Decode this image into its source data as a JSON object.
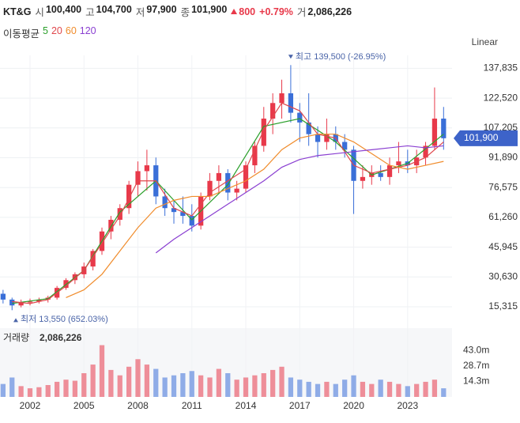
{
  "header": {
    "name": "KT&G",
    "items": [
      {
        "label": "시",
        "value": "100,400"
      },
      {
        "label": "고",
        "value": "104,700"
      },
      {
        "label": "저",
        "value": "97,900"
      },
      {
        "label": "종",
        "value": "101,900"
      }
    ],
    "change": {
      "amount": "800",
      "percent": "+0.79%"
    },
    "volume": {
      "label": "거",
      "value": "2,086,226"
    },
    "ma_legend": "이동평균",
    "scale_mode": "Linear"
  },
  "chart_data": {
    "type": "candlestick",
    "up_color": "#e8394a",
    "down_color": "#3a6fd8",
    "xlim": [
      2000.33,
      2025.47
    ],
    "xticks": [
      2002,
      2005,
      2008,
      2011,
      2014,
      2017,
      2020,
      2023
    ],
    "ylim": [
      8400,
      144500
    ],
    "yticks": [
      {
        "value": 15315,
        "label": "15,315"
      },
      {
        "value": 30630,
        "label": "30,630"
      },
      {
        "value": 45945,
        "label": "45,945"
      },
      {
        "value": 61260,
        "label": "61,260"
      },
      {
        "value": 76575,
        "label": "76,575"
      },
      {
        "value": 91890,
        "label": "91,890"
      },
      {
        "value": 107205,
        "label": "107,205"
      },
      {
        "value": 122520,
        "label": "122,520"
      },
      {
        "value": 137835,
        "label": "137,835"
      }
    ],
    "grid": true,
    "x": [
      2000.5,
      2001,
      2001.5,
      2002,
      2002.5,
      2003,
      2003.5,
      2004,
      2004.5,
      2005,
      2005.5,
      2006,
      2006.5,
      2007,
      2007.5,
      2008,
      2008.5,
      2009,
      2009.5,
      2010,
      2010.5,
      2011,
      2011.5,
      2012,
      2012.5,
      2013,
      2013.5,
      2014,
      2014.5,
      2015,
      2015.5,
      2016,
      2016.5,
      2017,
      2017.5,
      2018,
      2018.5,
      2019,
      2019.5,
      2020,
      2020.5,
      2021,
      2021.5,
      2022,
      2022.5,
      2023,
      2023.5,
      2024,
      2024.5,
      2025
    ],
    "open": [
      22000,
      19000,
      16000,
      17500,
      18000,
      19000,
      20000,
      25000,
      29000,
      32000,
      36000,
      44000,
      54000,
      60000,
      66000,
      78000,
      85000,
      88000,
      72000,
      66000,
      64000,
      62000,
      57000,
      72000,
      80000,
      84000,
      74000,
      76000,
      88000,
      98000,
      112000,
      120000,
      125000,
      115000,
      110000,
      104000,
      100000,
      104000,
      100000,
      96000,
      80000,
      82000,
      84000,
      82000,
      88000,
      90000,
      88000,
      92000,
      98000,
      112000
    ],
    "high": [
      24000,
      20000,
      19000,
      19500,
      20000,
      21000,
      26000,
      30000,
      33000,
      38000,
      45000,
      56000,
      62000,
      68000,
      80000,
      90000,
      96000,
      92000,
      76000,
      70000,
      72000,
      68000,
      74000,
      84000,
      88000,
      86000,
      80000,
      90000,
      100000,
      118000,
      125000,
      132000,
      139500,
      120000,
      125000,
      108000,
      112000,
      108000,
      104000,
      98000,
      88000,
      88000,
      88000,
      92000,
      100000,
      96000,
      96000,
      100000,
      128000,
      118000
    ],
    "low": [
      17000,
      13550,
      15000,
      16000,
      17000,
      17500,
      19000,
      24000,
      27000,
      30000,
      34000,
      42000,
      50000,
      57000,
      63000,
      72000,
      75000,
      68000,
      62000,
      58000,
      58000,
      54000,
      55000,
      70000,
      74000,
      70000,
      70000,
      74000,
      84000,
      95000,
      104000,
      112000,
      110000,
      100000,
      98000,
      92000,
      96000,
      96000,
      92000,
      63000,
      76000,
      78000,
      80000,
      78000,
      84000,
      84000,
      84000,
      88000,
      96000,
      96000
    ],
    "close": [
      19000,
      16000,
      17500,
      18000,
      19000,
      20000,
      25000,
      29000,
      32000,
      36000,
      44000,
      54000,
      60000,
      66000,
      78000,
      85000,
      88000,
      72000,
      66000,
      64000,
      62000,
      57000,
      72000,
      80000,
      84000,
      74000,
      76000,
      88000,
      98000,
      112000,
      120000,
      125000,
      115000,
      110000,
      104000,
      100000,
      104000,
      100000,
      96000,
      80000,
      82000,
      84000,
      82000,
      88000,
      90000,
      88000,
      92000,
      98000,
      112000,
      101900
    ],
    "ma": [
      {
        "name": "5",
        "color": "#2ca02c",
        "x": [
          2001,
          2003,
          2005,
          2007,
          2009,
          2011,
          2013,
          2015,
          2017,
          2019,
          2021,
          2023,
          2025
        ],
        "values": [
          17000,
          19500,
          34000,
          64000,
          80000,
          60000,
          78000,
          108000,
          112000,
          100000,
          83000,
          89000,
          104000
        ]
      },
      {
        "name": "20",
        "color": "#e0474c",
        "x": [
          2001,
          2002,
          2003,
          2004,
          2005,
          2006,
          2007,
          2008,
          2009,
          2010,
          2011,
          2012,
          2013,
          2014,
          2015,
          2016,
          2017,
          2018,
          2019,
          2020,
          2021,
          2022,
          2023,
          2024,
          2025
        ],
        "values": [
          18000,
          17000,
          19000,
          26000,
          34000,
          48000,
          62000,
          80000,
          80000,
          66000,
          62000,
          74000,
          80000,
          86000,
          106000,
          120000,
          116000,
          104000,
          102000,
          88000,
          84000,
          86000,
          88000,
          92000,
          100000
        ]
      },
      {
        "name": "60",
        "color": "#f08c2c",
        "x": [
          2004,
          2005,
          2006,
          2007,
          2008,
          2009,
          2010,
          2011,
          2012,
          2013,
          2014,
          2015,
          2016,
          2017,
          2018,
          2019,
          2020,
          2021,
          2022,
          2023,
          2024,
          2025
        ],
        "values": [
          20000,
          24000,
          32000,
          44000,
          56000,
          66000,
          70000,
          72000,
          72000,
          76000,
          80000,
          86000,
          96000,
          102000,
          104000,
          104000,
          100000,
          94000,
          88000,
          86000,
          88000,
          90000
        ]
      },
      {
        "name": "120",
        "color": "#8a3fd1",
        "x": [
          2009,
          2010,
          2011,
          2012,
          2013,
          2014,
          2015,
          2016,
          2017,
          2018,
          2019,
          2020,
          2021,
          2022,
          2023,
          2024,
          2025
        ],
        "values": [
          43000,
          50000,
          56000,
          62000,
          68000,
          74000,
          80000,
          87000,
          91000,
          93000,
          94000,
          95000,
          96000,
          97000,
          98000,
          97000,
          98000
        ]
      }
    ],
    "high_annotation": "최고 139,500 (-26.95%)",
    "low_annotation": "최저 13,550 (652.03%)",
    "current_price": {
      "value": 101900,
      "label": "101,900"
    },
    "volume_title": "거래량",
    "volume_value": "2,086,226",
    "volume": [
      12000000,
      18000000,
      10000000,
      8000000,
      9000000,
      11000000,
      14000000,
      16000000,
      15000000,
      22000000,
      30000000,
      48000000,
      25000000,
      20000000,
      28000000,
      35000000,
      30000000,
      26000000,
      18000000,
      20000000,
      22000000,
      24000000,
      20000000,
      18000000,
      26000000,
      22000000,
      16000000,
      18000000,
      20000000,
      22000000,
      25000000,
      28000000,
      18000000,
      16000000,
      14000000,
      12000000,
      14000000,
      12000000,
      16000000,
      20000000,
      14000000,
      12000000,
      16000000,
      14000000,
      12000000,
      10000000,
      12000000,
      14000000,
      16000000,
      8000000
    ],
    "vlim": [
      0,
      63800000
    ],
    "vticks": [
      {
        "value": 14300000,
        "label": "14.3m"
      },
      {
        "value": 28700000,
        "label": "28.7m"
      },
      {
        "value": 43000000,
        "label": "43.0m"
      }
    ]
  }
}
